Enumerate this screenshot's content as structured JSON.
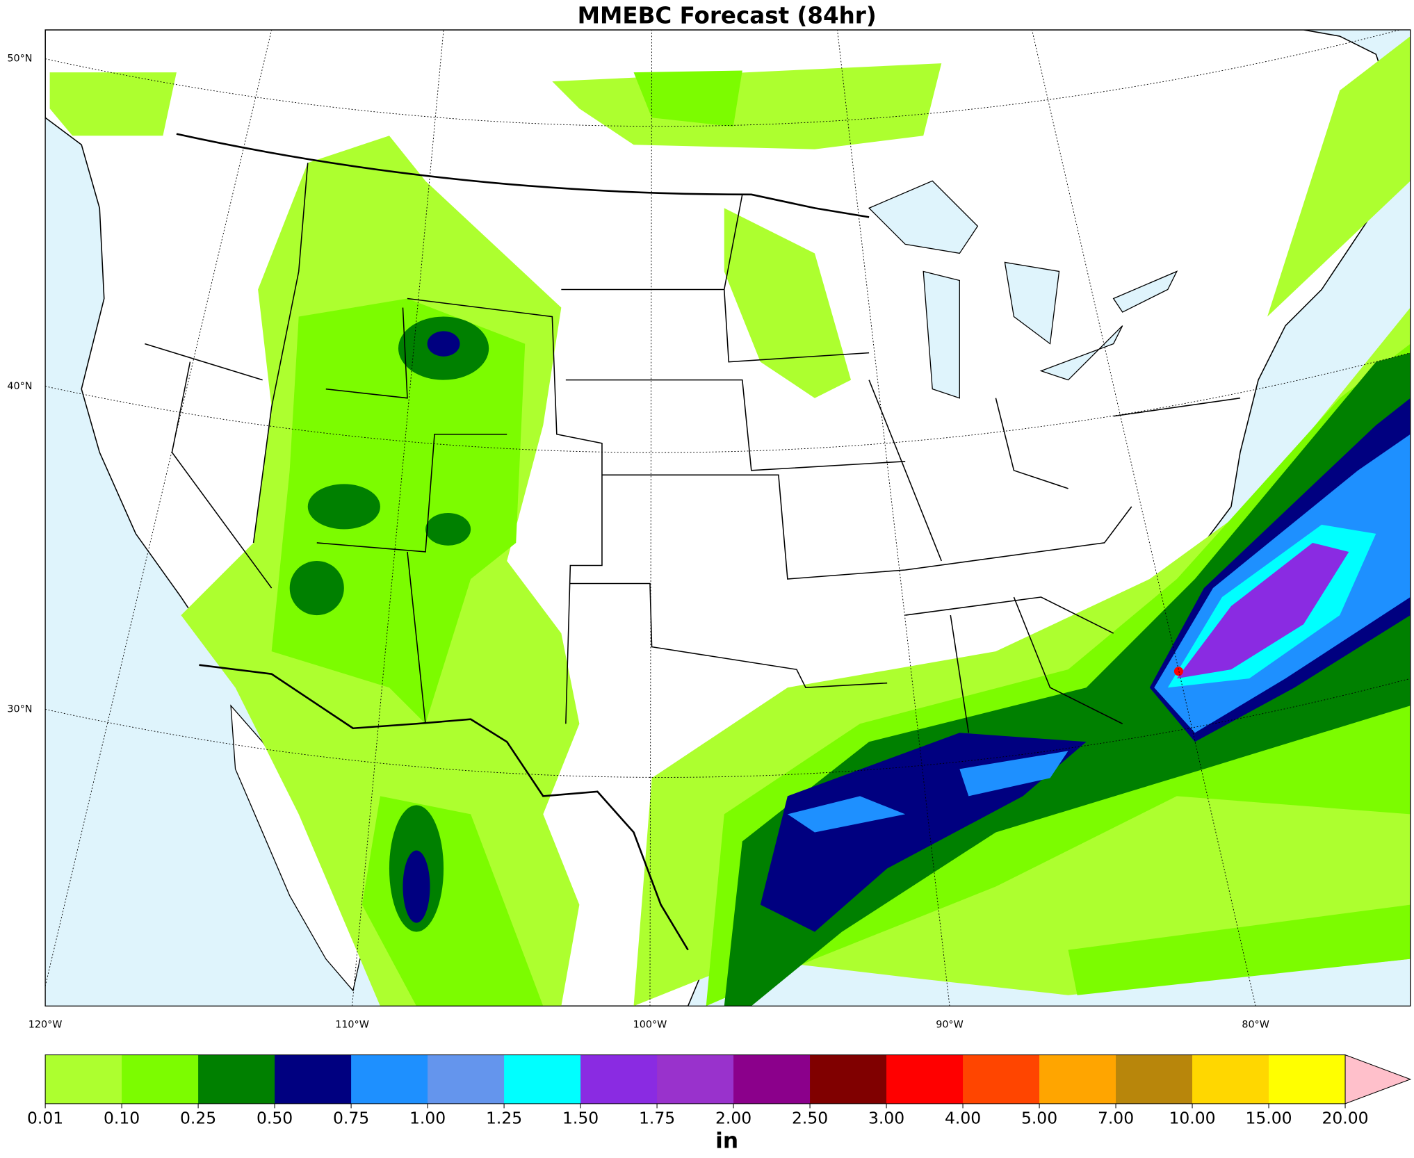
{
  "title": "MMEBC Forecast (84hr)",
  "map": {
    "lat_labels": [
      "50°N",
      "40°N",
      "30°N"
    ],
    "lon_labels": [
      "120°W",
      "110°W",
      "100°W",
      "90°W",
      "80°W"
    ]
  },
  "colorbar": {
    "unit": "in",
    "ticks": [
      "0.01",
      "0.10",
      "0.25",
      "0.50",
      "0.75",
      "1.00",
      "1.25",
      "1.50",
      "1.75",
      "2.00",
      "2.50",
      "3.00",
      "4.00",
      "5.00",
      "7.00",
      "10.00",
      "15.00",
      "20.00"
    ],
    "colors": [
      "#adff2f",
      "#7cfc00",
      "#008000",
      "#000080",
      "#1e90ff",
      "#6495ed",
      "#00ffff",
      "#8a2be2",
      "#9932cc",
      "#8b008b",
      "#800000",
      "#ff0000",
      "#ff4500",
      "#ffa500",
      "#b8860b",
      "#ffd700",
      "#ffff00",
      "#ffc0cb"
    ]
  }
}
